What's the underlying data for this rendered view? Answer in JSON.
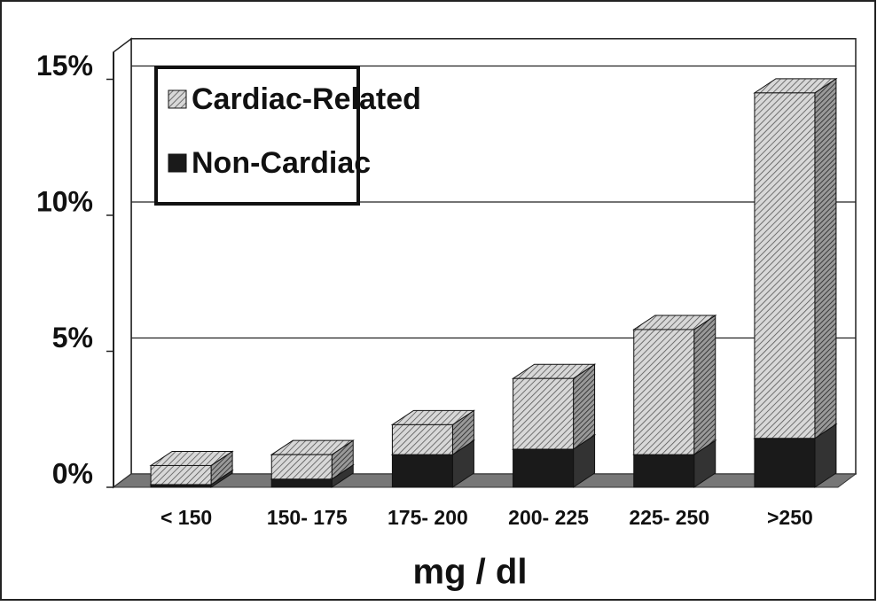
{
  "chart_data": {
    "type": "bar3d_stacked",
    "x_label": "mg / dl",
    "categories": [
      "< 150",
      "150- 175",
      "175- 200",
      "200- 225",
      "225- 250",
      ">250"
    ],
    "series": [
      {
        "name": "Non-Cardiac",
        "color": "#1a1a1a",
        "values": [
          0.1,
          0.3,
          1.2,
          1.4,
          1.2,
          1.8
        ]
      },
      {
        "name": "Cardiac-Related",
        "color": "#c8c8c8",
        "pattern": "hatch",
        "values": [
          0.7,
          0.9,
          1.1,
          2.6,
          4.6,
          12.7
        ]
      }
    ],
    "legend_order": [
      1,
      0
    ],
    "ylim": [
      0,
      16
    ],
    "yticks": [
      {
        "value": 0,
        "label": "0%"
      },
      {
        "value": 5,
        "label": "5%"
      },
      {
        "value": 10,
        "label": "10%"
      },
      {
        "value": 15,
        "label": "15%"
      }
    ],
    "grid": true
  }
}
